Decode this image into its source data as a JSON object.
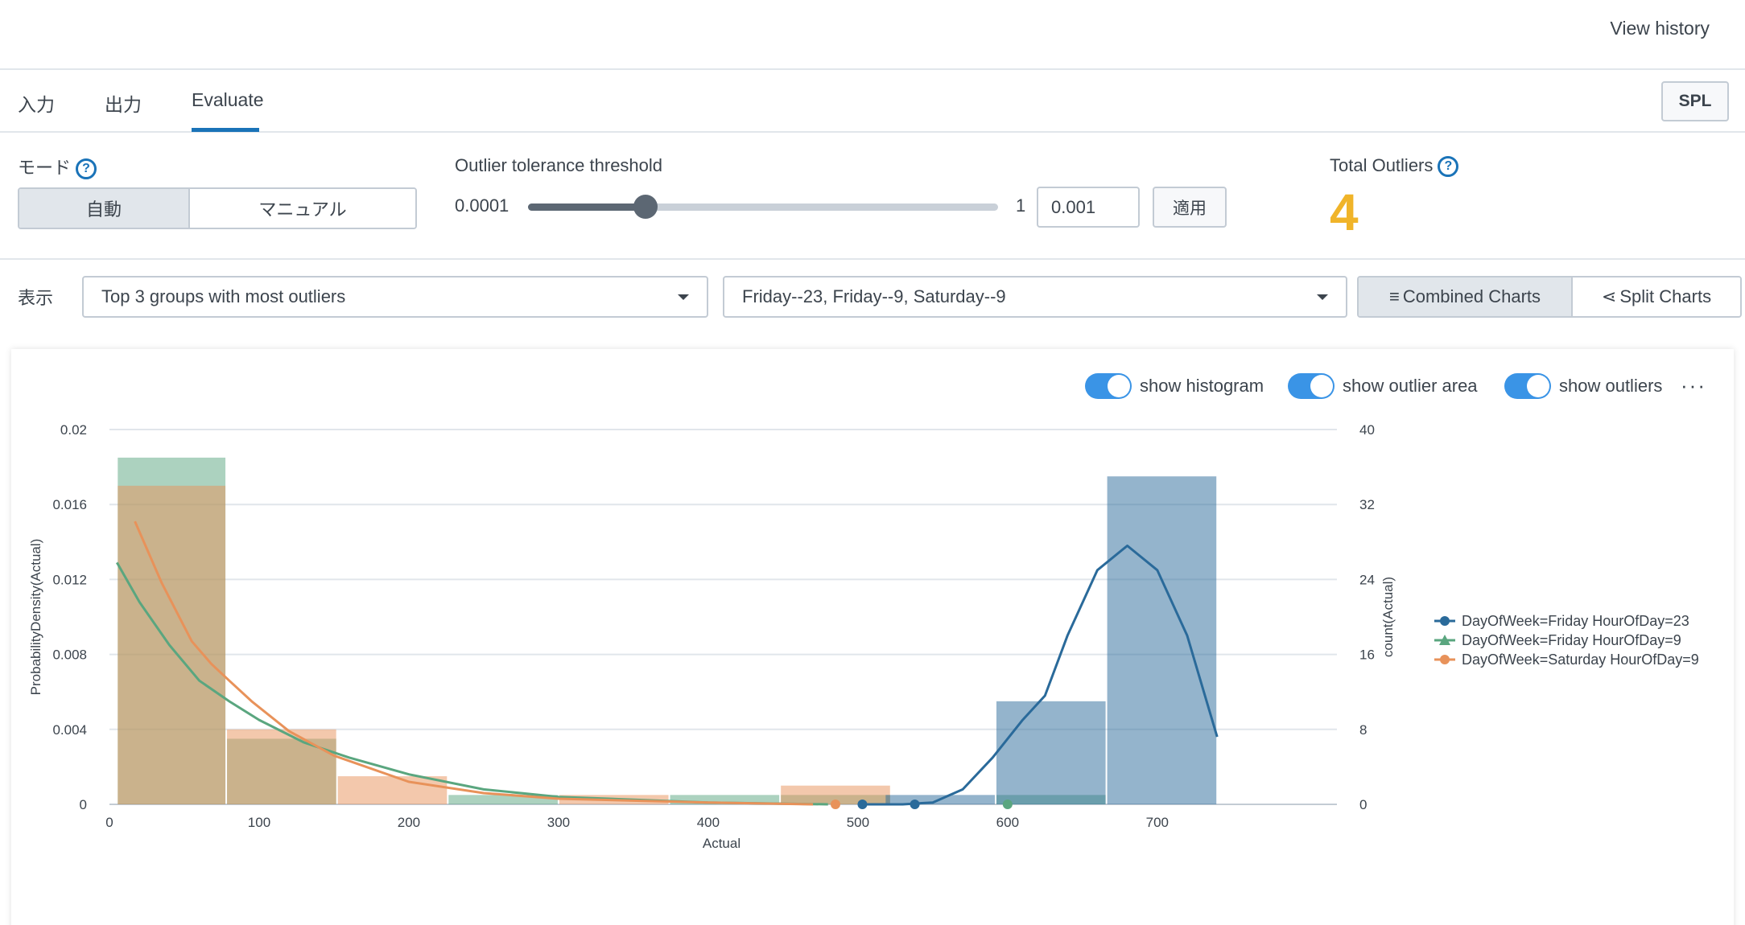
{
  "header": {
    "view_history": "View history"
  },
  "tabs": {
    "input": "入力",
    "output": "出力",
    "evaluate": "Evaluate",
    "spl": "SPL"
  },
  "controls": {
    "mode_label": "モード",
    "mode_auto": "自動",
    "mode_manual": "マニュアル",
    "threshold_label": "Outlier tolerance threshold",
    "slider_min": "0.0001",
    "slider_max": "1",
    "slider_position": 0.25,
    "threshold_value": "0.001",
    "apply": "適用",
    "total_outliers_label": "Total Outliers",
    "total_outliers_value": "4"
  },
  "display": {
    "label": "表示",
    "group_select": "Top 3 groups with most outliers",
    "series_select": "Friday--23, Friday--9, Saturday--9",
    "combined_charts": "Combined Charts",
    "split_charts": "Split Charts"
  },
  "chart_options": {
    "show_histogram": "show histogram",
    "show_outlier_area": "show outlier area",
    "show_outliers": "show outliers",
    "more": "···"
  },
  "colors": {
    "blue": "#2a6a9a",
    "green": "#5aa67f",
    "orange": "#e8925a",
    "accent": "#1a73b8",
    "outlier_count": "#f0b429"
  },
  "chart_data": {
    "type": "histogram+density",
    "xlabel": "Actual",
    "ylabel_left": "ProbabilityDensity(Actual)",
    "ylabel_right": "count(Actual)",
    "xlim": [
      0,
      820
    ],
    "xticks": [
      0,
      100,
      200,
      300,
      400,
      500,
      600,
      700
    ],
    "xtick_labels": [
      "0",
      "100",
      "200",
      "300",
      "400",
      "500",
      "600",
      "700"
    ],
    "ylim_left": [
      0,
      0.02
    ],
    "yticks_left": [
      "0",
      "0.004",
      "0.008",
      "0.012",
      "0.016",
      "0.02"
    ],
    "yticks_left_values": [
      0,
      0.004,
      0.008,
      0.012,
      0.016,
      0.02
    ],
    "ylim_right": [
      0,
      40
    ],
    "yticks_right": [
      "0",
      "8",
      "16",
      "24",
      "32",
      "40"
    ],
    "yticks_right_values": [
      0,
      8,
      16,
      24,
      32,
      40
    ],
    "legend": [
      "DayOfWeek=Friday HourOfDay=23",
      "DayOfWeek=Friday HourOfDay=9",
      "DayOfWeek=Saturday HourOfDay=9"
    ],
    "series": [
      {
        "name": "DayOfWeek=Friday HourOfDay=23",
        "color": "#2a6a9a",
        "marker": "circle",
        "histogram": [
          {
            "x0": 518,
            "x1": 592,
            "count": 1
          },
          {
            "x0": 592,
            "x1": 666,
            "count": 11
          },
          {
            "x0": 666,
            "x1": 740,
            "count": 35
          }
        ],
        "density": [
          [
            500,
            0
          ],
          [
            530,
            0
          ],
          [
            550,
            0.0001
          ],
          [
            570,
            0.0008
          ],
          [
            590,
            0.0025
          ],
          [
            610,
            0.0045
          ],
          [
            625,
            0.0058
          ],
          [
            640,
            0.009
          ],
          [
            660,
            0.0125
          ],
          [
            680,
            0.0138
          ],
          [
            700,
            0.0125
          ],
          [
            720,
            0.009
          ],
          [
            740,
            0.0036
          ]
        ],
        "outliers": [
          503,
          538
        ]
      },
      {
        "name": "DayOfWeek=Friday HourOfDay=9",
        "color": "#5aa67f",
        "marker": "triangle",
        "histogram": [
          {
            "x0": 5,
            "x1": 78,
            "count": 37
          },
          {
            "x0": 78,
            "x1": 152,
            "count": 7
          },
          {
            "x0": 226,
            "x1": 300,
            "count": 1
          },
          {
            "x0": 374,
            "x1": 448,
            "count": 1
          },
          {
            "x0": 448,
            "x1": 522,
            "count": 1
          },
          {
            "x0": 592,
            "x1": 666,
            "count": 1
          }
        ],
        "density": [
          [
            5,
            0.0129
          ],
          [
            20,
            0.0108
          ],
          [
            40,
            0.0085
          ],
          [
            60,
            0.0066
          ],
          [
            80,
            0.0055
          ],
          [
            100,
            0.0045
          ],
          [
            130,
            0.0033
          ],
          [
            160,
            0.0025
          ],
          [
            200,
            0.0016
          ],
          [
            250,
            0.0008
          ],
          [
            300,
            0.0004
          ],
          [
            400,
            0.0001
          ],
          [
            480,
            0
          ]
        ],
        "outliers": [
          600
        ]
      },
      {
        "name": "DayOfWeek=Saturday HourOfDay=9",
        "color": "#e8925a",
        "marker": "circle",
        "histogram": [
          {
            "x0": 5,
            "x1": 78,
            "count": 34
          },
          {
            "x0": 78,
            "x1": 152,
            "count": 8
          },
          {
            "x0": 152,
            "x1": 226,
            "count": 3
          },
          {
            "x0": 300,
            "x1": 374,
            "count": 1
          },
          {
            "x0": 448,
            "x1": 522,
            "count": 2
          }
        ],
        "density": [
          [
            17,
            0.0151
          ],
          [
            35,
            0.0118
          ],
          [
            55,
            0.0087
          ],
          [
            68,
            0.0075
          ],
          [
            80,
            0.0066
          ],
          [
            95,
            0.0055
          ],
          [
            120,
            0.0039
          ],
          [
            150,
            0.0026
          ],
          [
            200,
            0.0012
          ],
          [
            250,
            0.0006
          ],
          [
            300,
            0.0003
          ],
          [
            400,
            0.0001
          ],
          [
            470,
            0
          ]
        ],
        "outliers": [
          485
        ]
      }
    ]
  }
}
